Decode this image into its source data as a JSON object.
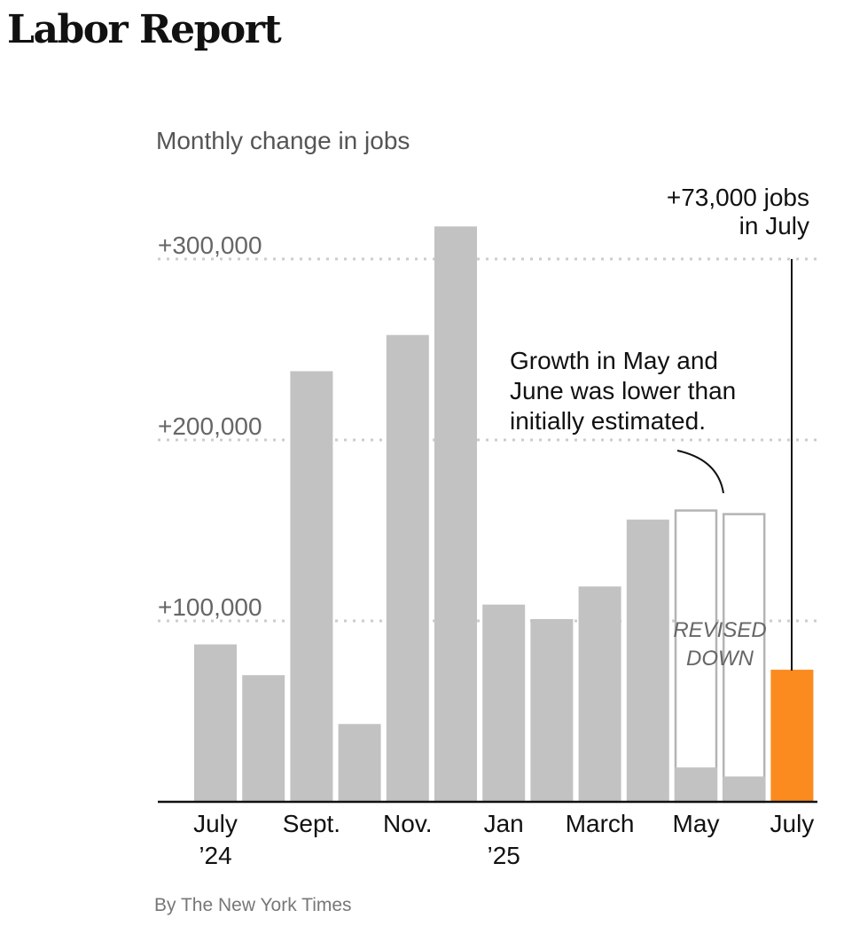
{
  "page": {
    "headline": "Labor Report",
    "byline": "By The New York Times"
  },
  "colors": {
    "bar": "#c2c2c2",
    "revised_outline": "#b4b4b4",
    "highlight": "#fb8b1e",
    "grid": "#cccccc",
    "axis": "#111111"
  },
  "chart_data": {
    "type": "bar",
    "title": "Monthly change in jobs",
    "ylim": [
      0,
      320000
    ],
    "yticks": [
      {
        "value": 100000,
        "label": "+100,000"
      },
      {
        "value": 200000,
        "label": "+200,000"
      },
      {
        "value": 300000,
        "label": "+300,000"
      }
    ],
    "grid": true,
    "categories": [
      "July 2024",
      "Aug. 2024",
      "Sept. 2024",
      "Oct. 2024",
      "Nov. 2024",
      "Dec. 2024",
      "Jan 2025",
      "Feb. 2025",
      "March 2025",
      "April 2025",
      "May 2025",
      "June 2025",
      "July 2025"
    ],
    "x_tick_labels": [
      {
        "index": 0,
        "lines": [
          "July",
          "’24"
        ]
      },
      {
        "index": 2,
        "lines": [
          "Sept."
        ]
      },
      {
        "index": 4,
        "lines": [
          "Nov."
        ]
      },
      {
        "index": 6,
        "lines": [
          "Jan",
          "’25"
        ]
      },
      {
        "index": 8,
        "lines": [
          "March"
        ]
      },
      {
        "index": 10,
        "lines": [
          "May"
        ]
      },
      {
        "index": 12,
        "lines": [
          "July"
        ]
      }
    ],
    "values": [
      87000,
      70000,
      238000,
      43000,
      258000,
      318000,
      109000,
      101000,
      119000,
      156000,
      19000,
      14000,
      73000
    ],
    "initial_estimates": [
      null,
      null,
      null,
      null,
      null,
      null,
      null,
      null,
      null,
      null,
      161000,
      159000,
      null
    ],
    "highlight_index": 12,
    "annotations": {
      "latest": {
        "lines": [
          "+73,000 jobs",
          "in July"
        ]
      },
      "revision": {
        "lines": [
          "Growth in May and",
          "June was lower than",
          "initially estimated."
        ]
      },
      "revised_label": {
        "lines": [
          "REVISED",
          "DOWN"
        ]
      }
    }
  }
}
